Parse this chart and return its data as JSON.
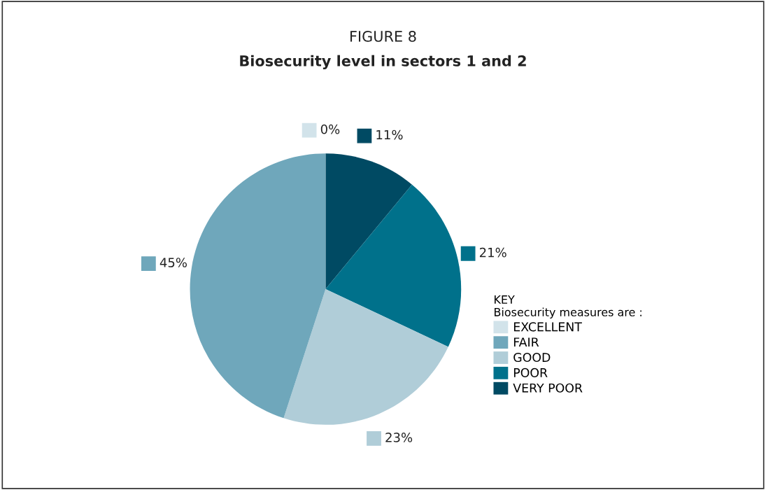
{
  "chart_data": {
    "type": "pie",
    "title": "FIGURE 8",
    "subtitle": "Biosecurity level in sectors 1 and 2",
    "categories": [
      "VERY POOR",
      "POOR",
      "GOOD",
      "FAIR",
      "EXCELLENT"
    ],
    "values": [
      11,
      21,
      23,
      45,
      0
    ],
    "value_labels": [
      "11%",
      "21%",
      "23%",
      "45%",
      "0%"
    ],
    "colors": [
      "#004a63",
      "#00718b",
      "#b0cdd8",
      "#6fa7bb",
      "#d2e3ea"
    ],
    "legend_title": "KEY\nBiosecurity measures are :",
    "legend": "right"
  }
}
